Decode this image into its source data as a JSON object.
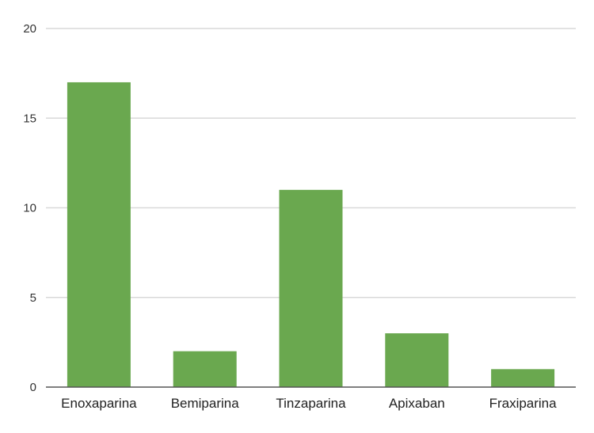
{
  "chart_data": {
    "type": "bar",
    "title": "",
    "xlabel": "",
    "ylabel": "",
    "categories": [
      "Enoxaparina",
      "Bemiparina",
      "Tinzaparina",
      "Apixaban",
      "Fraxiparina"
    ],
    "values": [
      17,
      2,
      11,
      3,
      1
    ],
    "ylim": [
      0,
      20
    ],
    "yticks": [
      "0",
      "5",
      "10",
      "15",
      "20"
    ],
    "grid": true,
    "legend": "none",
    "colors": {
      "bar": "#6aa84f",
      "grid": "#d9d9d9",
      "axis": "#555555"
    }
  }
}
